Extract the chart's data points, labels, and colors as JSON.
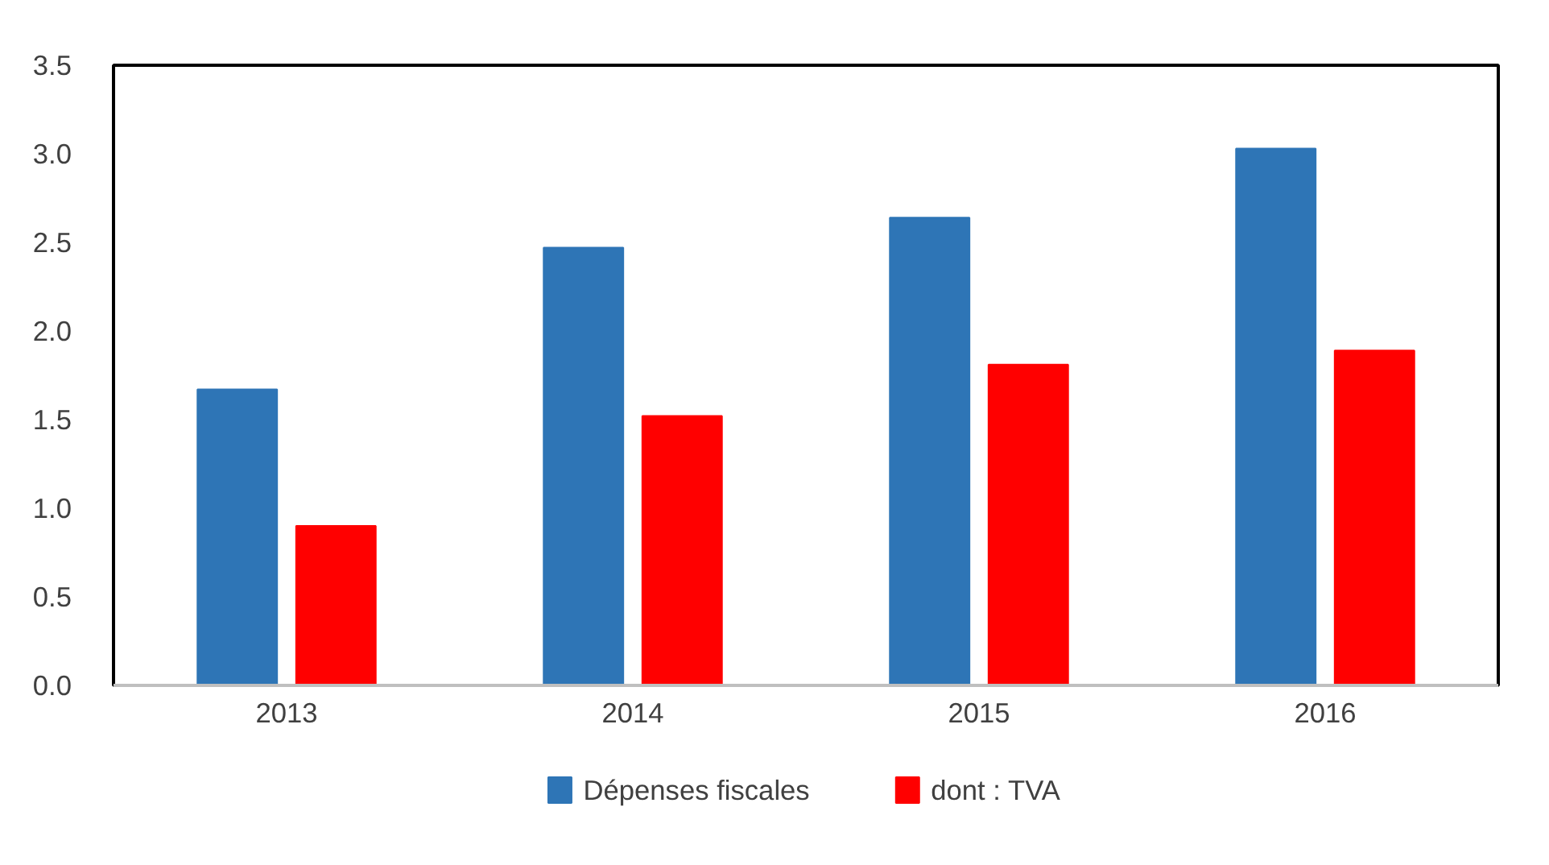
{
  "chart_data": {
    "type": "bar",
    "categories": [
      "2013",
      "2014",
      "2015",
      "2016"
    ],
    "series": [
      {
        "name": "Dépenses fiscales",
        "color": "#2e75b6",
        "values": [
          1.67,
          2.47,
          2.64,
          3.03
        ]
      },
      {
        "name": "dont : TVA",
        "color": "#ff0000",
        "values": [
          0.9,
          1.52,
          1.81,
          1.89
        ]
      }
    ],
    "ylim": [
      0,
      3.5
    ],
    "yticks": [
      {
        "value": 0,
        "label": "0.0"
      },
      {
        "value": 0.5,
        "label": "0.5"
      },
      {
        "value": 1,
        "label": "1.0"
      },
      {
        "value": 1.5,
        "label": "1.5"
      },
      {
        "value": 2,
        "label": "2.0"
      },
      {
        "value": 2.5,
        "label": "2.5"
      },
      {
        "value": 3,
        "label": "3.0"
      },
      {
        "value": 3.5,
        "label": "3.5"
      }
    ],
    "grid": false,
    "legend": "bottom"
  }
}
